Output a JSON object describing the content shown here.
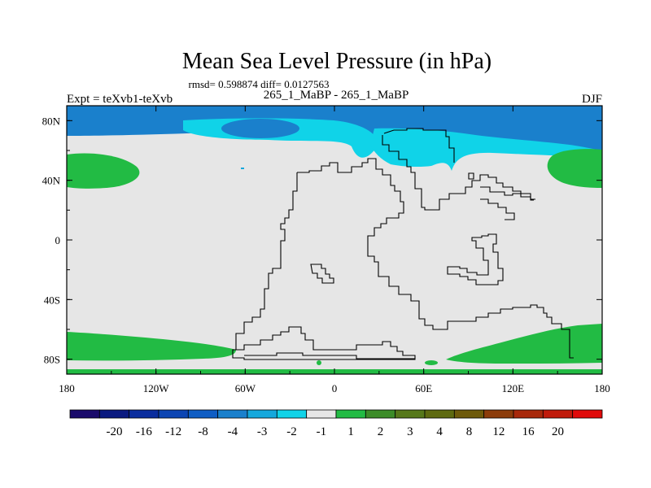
{
  "chart_data": {
    "type": "heatmap",
    "title": "Mean Sea Level Pressure (in hPa)",
    "stats_line": "rmsd= 0.598874 diff= 0.0127563",
    "subtitle": "265_1_MaBP - 265_1_MaBP",
    "left_label": "Expt = teXvb1-teXvb",
    "right_label": "DJF",
    "x_range": [
      -180,
      180
    ],
    "y_range": [
      -90,
      90
    ],
    "x_ticks": [
      {
        "value": -180,
        "label": "180"
      },
      {
        "value": -120,
        "label": "120W"
      },
      {
        "value": -60,
        "label": "60W"
      },
      {
        "value": 0,
        "label": "0"
      },
      {
        "value": 60,
        "label": "60E"
      },
      {
        "value": 120,
        "label": "120E"
      },
      {
        "value": 180,
        "label": "180"
      }
    ],
    "y_ticks": [
      {
        "value": 80,
        "label": "80N"
      },
      {
        "value": 40,
        "label": "40N"
      },
      {
        "value": 0,
        "label": "0"
      },
      {
        "value": -40,
        "label": "40S"
      },
      {
        "value": -80,
        "label": "80S"
      }
    ],
    "colorbar": {
      "colors": [
        "#1a0a6b",
        "#0a1a80",
        "#0a2d9e",
        "#0c45b3",
        "#0f5dc4",
        "#1a80cc",
        "#15a8dc",
        "#10d3e8",
        "#e6e6e6",
        "#22bb44",
        "#3c8c28",
        "#56781a",
        "#5e6a10",
        "#6e5a0a",
        "#8c3c0a",
        "#a8280a",
        "#c01a0a",
        "#e00a0a"
      ],
      "labels": [
        "-20",
        "-16",
        "-12",
        "-8",
        "-4",
        "-3",
        "-2",
        "-1",
        "1",
        "2",
        "3",
        "4",
        "8",
        "12",
        "16",
        "20"
      ]
    },
    "field": {
      "background_level": "1",
      "regions": [
        {
          "name": "north-polar-band",
          "level": "-2"
        },
        {
          "name": "north-polar-core",
          "level": "-3"
        },
        {
          "name": "north-atlantic-low",
          "level": "-1"
        },
        {
          "name": "north-pacific-low",
          "level": "-1"
        },
        {
          "name": "north-pacific-high-west",
          "level": "2"
        },
        {
          "name": "north-pacific-high-east",
          "level": "2"
        },
        {
          "name": "southern-ocean-west",
          "level": "2"
        },
        {
          "name": "southern-ocean-east",
          "level": "2"
        },
        {
          "name": "antarctic-coast-spot",
          "level": "2"
        }
      ]
    }
  }
}
